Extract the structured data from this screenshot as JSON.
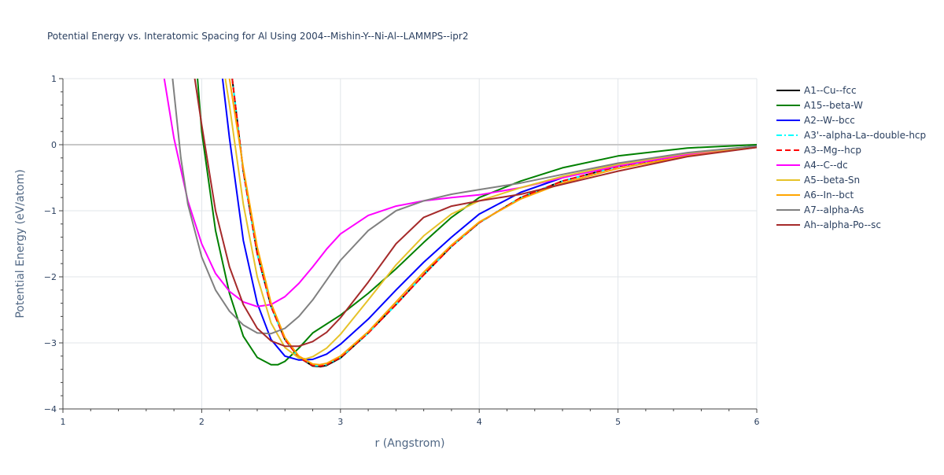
{
  "chart_data": {
    "type": "line",
    "title": "Potential Energy vs. Interatomic Spacing for Al Using 2004--Mishin-Y--Ni-Al--LAMMPS--ipr2",
    "xlabel": "r (Angstrom)",
    "ylabel": "Potential Energy (eV/atom)",
    "xlim": [
      1,
      6
    ],
    "ylim": [
      -4,
      1
    ],
    "xticks": [
      1,
      2,
      3,
      4,
      5,
      6
    ],
    "xtick_labels": [
      "1",
      "2",
      "3",
      "4",
      "5",
      "6"
    ],
    "yticks": [
      -4,
      -3,
      -2,
      -1,
      0,
      1
    ],
    "ytick_labels": [
      "−4",
      "−3",
      "−2",
      "−1",
      "0",
      "1"
    ],
    "grid": true,
    "legend_position": "top-right",
    "series": [
      {
        "name": "A1--Cu--fcc",
        "color": "#000000",
        "dash": "solid",
        "x": [
          2.22,
          2.3,
          2.4,
          2.5,
          2.6,
          2.7,
          2.8,
          2.86,
          2.9,
          3.0,
          3.2,
          3.4,
          3.6,
          3.8,
          4.0,
          4.3,
          4.6,
          5.0,
          5.5,
          6.0
        ],
        "y": [
          1.0,
          -0.4,
          -1.65,
          -2.45,
          -2.95,
          -3.22,
          -3.35,
          -3.36,
          -3.34,
          -3.23,
          -2.85,
          -2.42,
          -1.97,
          -1.54,
          -1.18,
          -0.8,
          -0.55,
          -0.33,
          -0.15,
          -0.03
        ]
      },
      {
        "name": "A15--beta-W",
        "color": "#008000",
        "dash": "solid",
        "x": [
          1.97,
          2.0,
          2.1,
          2.2,
          2.3,
          2.4,
          2.5,
          2.55,
          2.6,
          2.7,
          2.8,
          3.0,
          3.2,
          3.4,
          3.6,
          3.8,
          4.0,
          4.3,
          4.6,
          5.0,
          5.5,
          6.0
        ],
        "y": [
          1.0,
          0.2,
          -1.3,
          -2.25,
          -2.9,
          -3.22,
          -3.33,
          -3.33,
          -3.28,
          -3.08,
          -2.85,
          -2.58,
          -2.25,
          -1.88,
          -1.48,
          -1.1,
          -0.8,
          -0.55,
          -0.35,
          -0.17,
          -0.05,
          0.0
        ]
      },
      {
        "name": "A2--W--bcc",
        "color": "#0000ff",
        "dash": "solid",
        "x": [
          2.15,
          2.2,
          2.3,
          2.4,
          2.5,
          2.6,
          2.7,
          2.8,
          2.9,
          3.0,
          3.2,
          3.4,
          3.6,
          3.8,
          4.0,
          4.3,
          4.6,
          5.0,
          5.5,
          6.0
        ],
        "y": [
          1.0,
          0.1,
          -1.45,
          -2.4,
          -2.95,
          -3.2,
          -3.26,
          -3.25,
          -3.17,
          -3.02,
          -2.64,
          -2.2,
          -1.78,
          -1.4,
          -1.05,
          -0.72,
          -0.5,
          -0.3,
          -0.13,
          -0.02
        ]
      },
      {
        "name": "A3'--alpha-La--double-hcp",
        "color": "#00ffff",
        "dash": "dashdot",
        "x": [
          2.22,
          2.3,
          2.4,
          2.5,
          2.6,
          2.7,
          2.8,
          2.86,
          2.9,
          3.0,
          3.2,
          3.4,
          3.6,
          3.8,
          4.0,
          4.3,
          4.6,
          5.0,
          5.5,
          6.0
        ],
        "y": [
          1.0,
          -0.4,
          -1.65,
          -2.45,
          -2.95,
          -3.22,
          -3.34,
          -3.35,
          -3.33,
          -3.22,
          -2.85,
          -2.42,
          -1.97,
          -1.54,
          -1.18,
          -0.8,
          -0.55,
          -0.33,
          -0.15,
          -0.03
        ]
      },
      {
        "name": "A3--Mg--hcp",
        "color": "#ff0000",
        "dash": "dash",
        "x": [
          2.22,
          2.3,
          2.4,
          2.5,
          2.6,
          2.7,
          2.8,
          2.86,
          2.9,
          3.0,
          3.2,
          3.4,
          3.6,
          3.8,
          4.0,
          4.3,
          4.6,
          5.0,
          5.5,
          6.0
        ],
        "y": [
          1.0,
          -0.4,
          -1.65,
          -2.45,
          -2.95,
          -3.22,
          -3.34,
          -3.35,
          -3.33,
          -3.22,
          -2.85,
          -2.42,
          -1.97,
          -1.54,
          -1.18,
          -0.8,
          -0.55,
          -0.33,
          -0.15,
          -0.03
        ]
      },
      {
        "name": "A4--C--dc",
        "color": "#ff00ff",
        "dash": "solid",
        "x": [
          1.73,
          1.8,
          1.9,
          2.0,
          2.1,
          2.2,
          2.3,
          2.4,
          2.5,
          2.6,
          2.7,
          2.8,
          2.9,
          3.0,
          3.2,
          3.4,
          3.6,
          3.8,
          4.0,
          4.3,
          4.6,
          5.0,
          5.5,
          6.0
        ],
        "y": [
          1.0,
          0.1,
          -0.85,
          -1.5,
          -1.95,
          -2.22,
          -2.38,
          -2.45,
          -2.42,
          -2.3,
          -2.1,
          -1.85,
          -1.58,
          -1.35,
          -1.07,
          -0.93,
          -0.85,
          -0.8,
          -0.76,
          -0.65,
          -0.5,
          -0.32,
          -0.15,
          -0.04
        ]
      },
      {
        "name": "A5--beta-Sn",
        "color": "#e6c229",
        "dash": "solid",
        "x": [
          2.17,
          2.2,
          2.3,
          2.4,
          2.5,
          2.6,
          2.7,
          2.75,
          2.8,
          2.9,
          3.0,
          3.2,
          3.4,
          3.6,
          3.8,
          4.0,
          4.3,
          4.6,
          5.0,
          5.5,
          6.0
        ],
        "y": [
          1.0,
          0.6,
          -0.9,
          -2.0,
          -2.7,
          -3.07,
          -3.23,
          -3.24,
          -3.21,
          -3.08,
          -2.87,
          -2.35,
          -1.82,
          -1.38,
          -1.05,
          -0.85,
          -0.65,
          -0.48,
          -0.3,
          -0.13,
          -0.03
        ]
      },
      {
        "name": "A6--In--bct",
        "color": "#ffa500",
        "dash": "solid",
        "x": [
          2.2,
          2.3,
          2.4,
          2.5,
          2.6,
          2.7,
          2.8,
          2.85,
          2.9,
          3.0,
          3.2,
          3.4,
          3.6,
          3.8,
          4.0,
          4.3,
          4.6,
          5.0,
          5.5,
          6.0
        ],
        "y": [
          1.0,
          -0.35,
          -1.55,
          -2.4,
          -2.92,
          -3.2,
          -3.32,
          -3.33,
          -3.31,
          -3.2,
          -2.83,
          -2.38,
          -1.93,
          -1.52,
          -1.17,
          -0.82,
          -0.58,
          -0.36,
          -0.17,
          -0.04
        ]
      },
      {
        "name": "A7--alpha-As",
        "color": "#808080",
        "dash": "solid",
        "x": [
          1.79,
          1.85,
          1.9,
          2.0,
          2.1,
          2.2,
          2.3,
          2.4,
          2.5,
          2.6,
          2.7,
          2.8,
          2.9,
          3.0,
          3.2,
          3.4,
          3.6,
          3.8,
          4.0,
          4.3,
          4.6,
          5.0,
          5.5,
          6.0
        ],
        "y": [
          1.0,
          -0.2,
          -0.9,
          -1.7,
          -2.2,
          -2.52,
          -2.73,
          -2.85,
          -2.86,
          -2.78,
          -2.6,
          -2.35,
          -2.05,
          -1.75,
          -1.3,
          -1.0,
          -0.85,
          -0.75,
          -0.68,
          -0.58,
          -0.45,
          -0.28,
          -0.12,
          -0.02
        ]
      },
      {
        "name": "Ah--alpha-Po--sc",
        "color": "#a52a2a",
        "dash": "solid",
        "x": [
          1.95,
          2.0,
          2.1,
          2.2,
          2.3,
          2.4,
          2.5,
          2.6,
          2.7,
          2.8,
          2.9,
          3.0,
          3.2,
          3.4,
          3.6,
          3.8,
          4.0,
          4.3,
          4.6,
          5.0,
          5.5,
          6.0
        ],
        "y": [
          1.0,
          0.3,
          -1.0,
          -1.85,
          -2.42,
          -2.78,
          -2.97,
          -3.05,
          -3.05,
          -2.98,
          -2.84,
          -2.62,
          -2.08,
          -1.5,
          -1.1,
          -0.93,
          -0.85,
          -0.75,
          -0.6,
          -0.4,
          -0.18,
          -0.04
        ]
      }
    ]
  }
}
